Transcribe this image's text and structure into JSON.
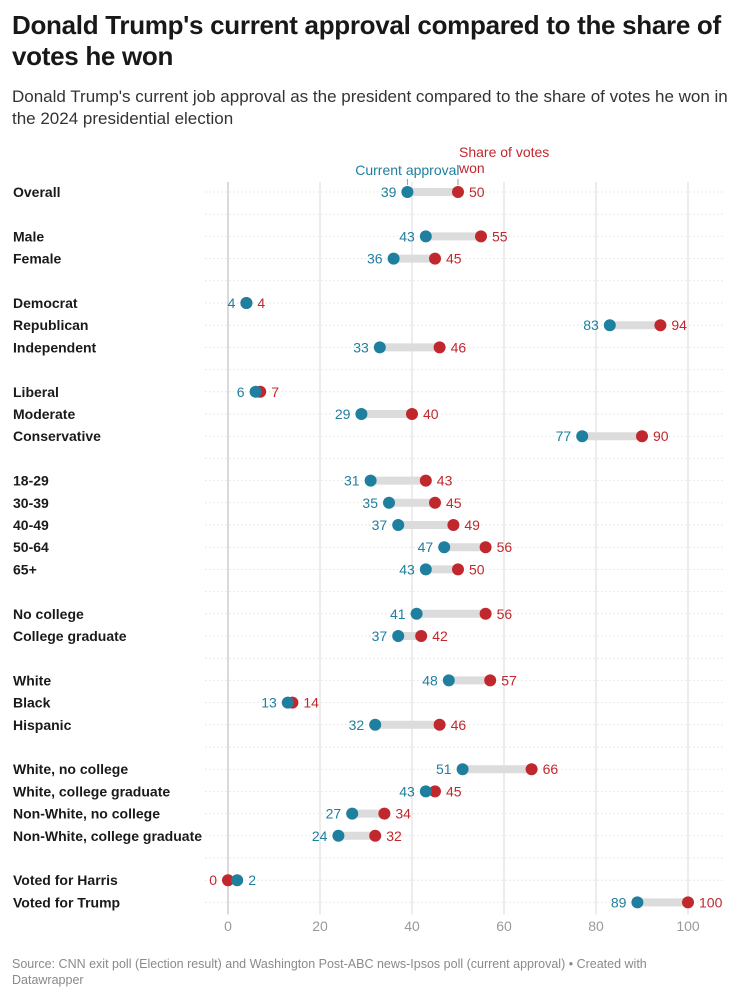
{
  "title": "Donald Trump's current approval compared to the share of votes he won",
  "subtitle": "Donald Trump's current job approval as the president compared to the share of votes he won in the 2024 presidential election",
  "footer": {
    "source": "Source: CNN exit poll (Election result) and Washington Post-ABC news-Ipsos poll (current approval)",
    "credit": "• Created with Datawrapper"
  },
  "colors": {
    "approval": "#1f7f9e",
    "votes": "#c0282d",
    "connector": "#dcdcdc",
    "grid": "#d8d8d8"
  },
  "chart_data": {
    "type": "dot-range",
    "xlim": [
      0,
      100
    ],
    "x_ticks": [
      0,
      20,
      40,
      60,
      80,
      100
    ],
    "grid": true,
    "series": [
      {
        "key": "approval",
        "name": "Current approval"
      },
      {
        "key": "votes",
        "name": "Share of votes won"
      }
    ],
    "groups": [
      [
        {
          "label": "Overall",
          "approval": 39,
          "votes": 50
        }
      ],
      [
        {
          "label": "Male",
          "approval": 43,
          "votes": 55
        },
        {
          "label": "Female",
          "approval": 36,
          "votes": 45
        }
      ],
      [
        {
          "label": "Democrat",
          "approval": 4,
          "votes": 4
        },
        {
          "label": "Republican",
          "approval": 83,
          "votes": 94
        },
        {
          "label": "Independent",
          "approval": 33,
          "votes": 46
        }
      ],
      [
        {
          "label": "Liberal",
          "approval": 6,
          "votes": 7
        },
        {
          "label": "Moderate",
          "approval": 29,
          "votes": 40
        },
        {
          "label": "Conservative",
          "approval": 77,
          "votes": 90
        }
      ],
      [
        {
          "label": "18-29",
          "approval": 31,
          "votes": 43
        },
        {
          "label": "30-39",
          "approval": 35,
          "votes": 45
        },
        {
          "label": "40-49",
          "approval": 37,
          "votes": 49
        },
        {
          "label": "50-64",
          "approval": 47,
          "votes": 56
        },
        {
          "label": "65+",
          "approval": 43,
          "votes": 50
        }
      ],
      [
        {
          "label": "No college",
          "approval": 41,
          "votes": 56
        },
        {
          "label": "College graduate",
          "approval": 37,
          "votes": 42
        }
      ],
      [
        {
          "label": "White",
          "approval": 48,
          "votes": 57
        },
        {
          "label": "Black",
          "approval": 13,
          "votes": 14
        },
        {
          "label": "Hispanic",
          "approval": 32,
          "votes": 46
        }
      ],
      [
        {
          "label": "White, no college",
          "approval": 51,
          "votes": 66
        },
        {
          "label": "White, college graduate",
          "approval": 43,
          "votes": 45
        },
        {
          "label": "Non-White, no college",
          "approval": 27,
          "votes": 34
        },
        {
          "label": "Non-White, college graduate",
          "approval": 24,
          "votes": 32
        }
      ],
      [
        {
          "label": "Voted for Harris",
          "approval": 2,
          "votes": 0
        },
        {
          "label": "Voted for Trump",
          "approval": 89,
          "votes": 100
        }
      ]
    ]
  }
}
